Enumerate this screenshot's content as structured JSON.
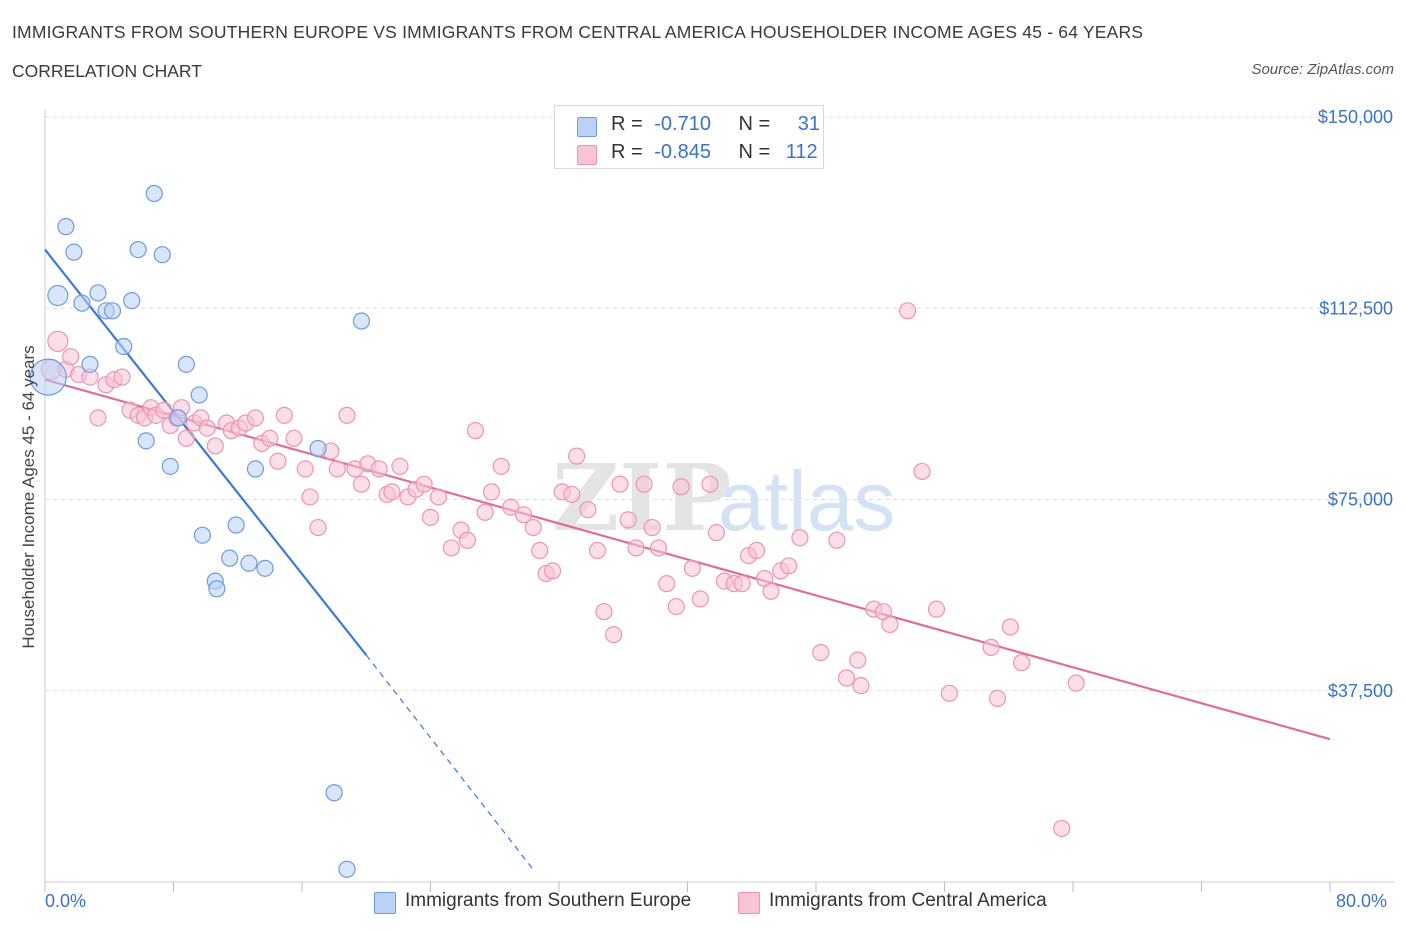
{
  "title": "IMMIGRANTS FROM SOUTHERN EUROPE VS IMMIGRANTS FROM CENTRAL AMERICA HOUSEHOLDER INCOME AGES 45 - 64 YEARS",
  "subtitle": "CORRELATION CHART",
  "source": "Source: ZipAtlas.com",
  "watermark": {
    "zip": "ZIP",
    "atlas": "atlas"
  },
  "legend": {
    "rows": [
      {
        "r_label": "R =",
        "r_value": "-0.710",
        "n_label": "N =",
        "n_value": "31"
      },
      {
        "r_label": "R =",
        "r_value": "-0.845",
        "n_label": "N =",
        "n_value": "112"
      }
    ]
  },
  "bottom_legend": [
    "Immigrants from Southern Europe",
    "Immigrants from Central America"
  ],
  "colors": {
    "blue_fill": "#b9d2f5",
    "blue_stroke": "#6c9ce0",
    "blue_line": "#3a7ad5",
    "pink_fill": "#f7c3d5",
    "pink_stroke": "#ec94b3",
    "pink_line": "#e06d98",
    "axis_label": "#3b73c9",
    "grid": "#dddddd"
  },
  "chart_data": {
    "type": "scatter",
    "title": "IMMIGRANTS FROM SOUTHERN EUROPE VS IMMIGRANTS FROM CENTRAL AMERICA HOUSEHOLDER INCOME AGES 45 - 64 YEARS",
    "xlabel": "",
    "ylabel": "Householder Income Ages 45 - 64 years",
    "xlim": [
      0,
      80
    ],
    "ylim": [
      0,
      150000
    ],
    "x_tick_labels": [
      "0.0%",
      "80.0%"
    ],
    "y_ticks": [
      37500,
      75000,
      112500,
      150000
    ],
    "y_tick_labels": [
      "$37,500",
      "$75,000",
      "$112,500",
      "$150,000"
    ],
    "grid": "horizontal dashed",
    "legend_position": "top-center",
    "series": [
      {
        "name": "Immigrants from Southern Europe",
        "color": "#b9d2f5",
        "r": -0.71,
        "n": 31,
        "trend": {
          "x0": 0,
          "y0": 124000,
          "x1": 20,
          "y1": 44500,
          "dash_to_x": 30.5,
          "dash_to_y": 2000
        },
        "points": [
          [
            0.2,
            99000,
            18
          ],
          [
            0.8,
            115000,
            10
          ],
          [
            1.3,
            128500,
            8
          ],
          [
            1.8,
            123500,
            8
          ],
          [
            2.3,
            113500,
            8
          ],
          [
            2.8,
            101500,
            8
          ],
          [
            3.3,
            115500,
            8
          ],
          [
            3.8,
            112000,
            8
          ],
          [
            4.2,
            112000,
            8
          ],
          [
            4.9,
            105000,
            8
          ],
          [
            5.4,
            114000,
            8
          ],
          [
            5.8,
            124000,
            8
          ],
          [
            6.3,
            86500,
            8
          ],
          [
            6.8,
            135000,
            8
          ],
          [
            7.3,
            123000,
            8
          ],
          [
            7.8,
            81500,
            8
          ],
          [
            8.3,
            91000,
            8
          ],
          [
            8.8,
            101500,
            8
          ],
          [
            9.6,
            95500,
            8
          ],
          [
            9.8,
            68000,
            8
          ],
          [
            10.6,
            59000,
            8
          ],
          [
            10.7,
            57500,
            8
          ],
          [
            11.5,
            63500,
            8
          ],
          [
            11.9,
            70000,
            8
          ],
          [
            12.7,
            62500,
            8
          ],
          [
            13.1,
            81000,
            8
          ],
          [
            13.7,
            61500,
            8
          ],
          [
            17.0,
            85000,
            8
          ],
          [
            18.0,
            17500,
            8
          ],
          [
            18.8,
            2500,
            8
          ],
          [
            19.7,
            110000,
            8
          ]
        ]
      },
      {
        "name": "Immigrants from Central America",
        "color": "#f7c3d5",
        "r": -0.845,
        "n": 112,
        "trend": {
          "x0": 0,
          "y0": 98500,
          "x1": 80,
          "y1": 28000
        },
        "points": [
          [
            0.4,
            100500,
            10
          ],
          [
            0.8,
            106000,
            10
          ],
          [
            1.3,
            100500,
            8
          ],
          [
            1.6,
            103000,
            8
          ],
          [
            2.1,
            99500,
            8
          ],
          [
            2.8,
            99000,
            8
          ],
          [
            3.3,
            91000,
            8
          ],
          [
            3.8,
            97500,
            8
          ],
          [
            4.3,
            98500,
            8
          ],
          [
            4.8,
            99000,
            8
          ],
          [
            5.3,
            92500,
            8
          ],
          [
            5.8,
            91500,
            8
          ],
          [
            6.2,
            91000,
            8
          ],
          [
            6.6,
            93000,
            8
          ],
          [
            6.9,
            91500,
            8
          ],
          [
            7.4,
            92500,
            8
          ],
          [
            7.8,
            89500,
            8
          ],
          [
            8.2,
            91000,
            8
          ],
          [
            8.5,
            93000,
            8
          ],
          [
            8.8,
            87000,
            8
          ],
          [
            9.3,
            90000,
            8
          ],
          [
            9.7,
            91000,
            8
          ],
          [
            10.1,
            89000,
            8
          ],
          [
            10.6,
            85500,
            8
          ],
          [
            11.3,
            90000,
            8
          ],
          [
            11.6,
            88500,
            8
          ],
          [
            12.1,
            89000,
            8
          ],
          [
            12.5,
            90000,
            8
          ],
          [
            13.1,
            91000,
            8
          ],
          [
            13.5,
            86000,
            8
          ],
          [
            14.0,
            87000,
            8
          ],
          [
            14.5,
            82500,
            8
          ],
          [
            14.9,
            91500,
            8
          ],
          [
            15.5,
            87000,
            8
          ],
          [
            16.2,
            81000,
            8
          ],
          [
            16.5,
            75500,
            8
          ],
          [
            17.0,
            69500,
            8
          ],
          [
            17.8,
            84500,
            8
          ],
          [
            18.2,
            81000,
            8
          ],
          [
            18.8,
            91500,
            8
          ],
          [
            19.3,
            81000,
            8
          ],
          [
            19.7,
            78000,
            8
          ],
          [
            20.1,
            82000,
            8
          ],
          [
            20.8,
            81000,
            8
          ],
          [
            21.3,
            76000,
            8
          ],
          [
            21.6,
            76500,
            8
          ],
          [
            22.1,
            81500,
            8
          ],
          [
            22.6,
            75500,
            8
          ],
          [
            23.1,
            77000,
            8
          ],
          [
            23.6,
            78000,
            8
          ],
          [
            24.0,
            71500,
            8
          ],
          [
            24.5,
            75500,
            8
          ],
          [
            25.3,
            65500,
            8
          ],
          [
            25.9,
            69000,
            8
          ],
          [
            26.3,
            67000,
            8
          ],
          [
            26.8,
            88500,
            8
          ],
          [
            27.4,
            72500,
            8
          ],
          [
            27.8,
            76500,
            8
          ],
          [
            28.4,
            81500,
            8
          ],
          [
            29.0,
            73500,
            8
          ],
          [
            29.8,
            72000,
            8
          ],
          [
            30.4,
            69500,
            8
          ],
          [
            30.8,
            65000,
            8
          ],
          [
            31.2,
            60500,
            8
          ],
          [
            31.6,
            61000,
            8
          ],
          [
            32.2,
            76500,
            8
          ],
          [
            32.8,
            76000,
            8
          ],
          [
            33.1,
            83500,
            8
          ],
          [
            33.8,
            73000,
            8
          ],
          [
            34.4,
            65000,
            8
          ],
          [
            34.8,
            53000,
            8
          ],
          [
            35.4,
            48500,
            8
          ],
          [
            35.8,
            78000,
            8
          ],
          [
            36.3,
            71000,
            8
          ],
          [
            36.8,
            65500,
            8
          ],
          [
            37.3,
            78000,
            8
          ],
          [
            37.8,
            69500,
            8
          ],
          [
            38.2,
            65500,
            8
          ],
          [
            38.7,
            58500,
            8
          ],
          [
            39.3,
            54000,
            8
          ],
          [
            39.6,
            77500,
            8
          ],
          [
            40.3,
            61500,
            8
          ],
          [
            40.8,
            55500,
            8
          ],
          [
            41.4,
            78000,
            8
          ],
          [
            41.8,
            68500,
            8
          ],
          [
            42.3,
            59000,
            8
          ],
          [
            42.9,
            58500,
            8
          ],
          [
            43.4,
            58500,
            8
          ],
          [
            43.8,
            64000,
            8
          ],
          [
            44.3,
            65000,
            8
          ],
          [
            44.8,
            59500,
            8
          ],
          [
            45.2,
            57000,
            8
          ],
          [
            45.8,
            61000,
            8
          ],
          [
            46.3,
            62000,
            8
          ],
          [
            47.0,
            67500,
            8
          ],
          [
            48.3,
            45000,
            8
          ],
          [
            49.3,
            67000,
            8
          ],
          [
            49.9,
            40000,
            8
          ],
          [
            50.6,
            43500,
            8
          ],
          [
            50.8,
            38500,
            8
          ],
          [
            51.6,
            53500,
            8
          ],
          [
            52.2,
            53000,
            8
          ],
          [
            52.6,
            50500,
            8
          ],
          [
            53.7,
            112000,
            8
          ],
          [
            54.6,
            80500,
            8
          ],
          [
            55.5,
            53500,
            8
          ],
          [
            56.3,
            37000,
            8
          ],
          [
            58.9,
            46000,
            8
          ],
          [
            59.3,
            36000,
            8
          ],
          [
            60.1,
            50000,
            8
          ],
          [
            60.8,
            43000,
            8
          ],
          [
            63.3,
            10500,
            8
          ],
          [
            64.2,
            39000,
            8
          ]
        ]
      }
    ]
  }
}
